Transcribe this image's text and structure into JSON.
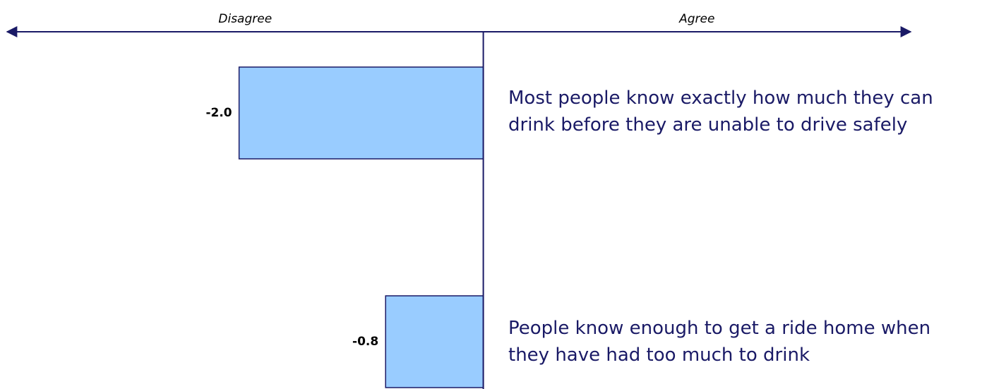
{
  "chart_data": {
    "type": "bar",
    "orientation": "horizontal",
    "annotations": [
      "Disagree",
      "Agree"
    ],
    "categories": [
      "Most people know exactly how much they can drink before they are unable to drive safely",
      "People know enough to get a ride home when they have had too much to drink"
    ],
    "values": [
      -2.0,
      -0.8
    ],
    "value_labels": [
      "-2.0",
      "-0.8"
    ],
    "color": "#99ccff",
    "edge_color": "#1a1a66",
    "xlim": [
      -3.9,
      3.5
    ],
    "grid": false
  }
}
